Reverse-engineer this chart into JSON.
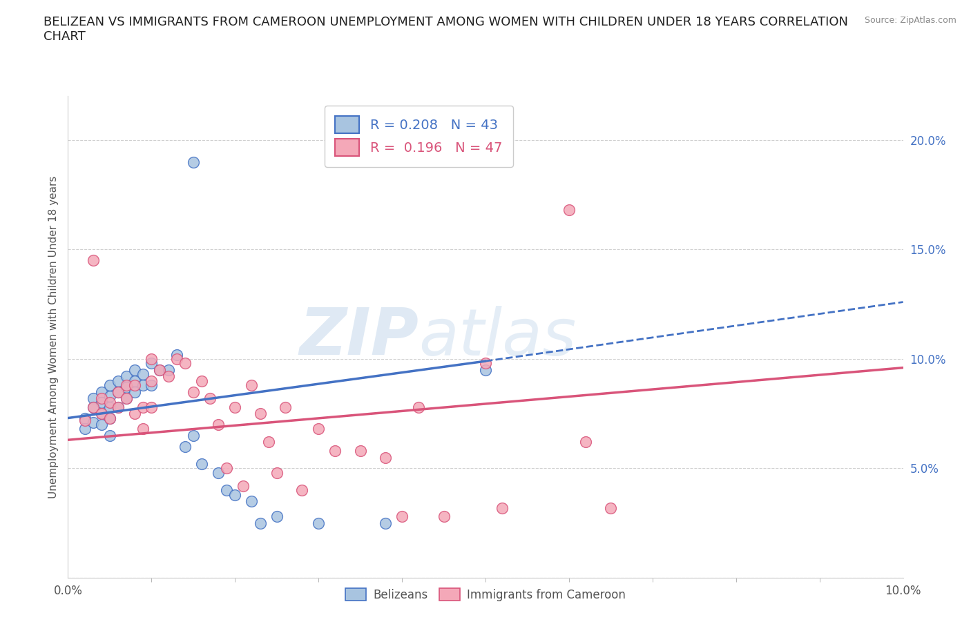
{
  "title": "BELIZEAN VS IMMIGRANTS FROM CAMEROON UNEMPLOYMENT AMONG WOMEN WITH CHILDREN UNDER 18 YEARS CORRELATION\nCHART",
  "source": "Source: ZipAtlas.com",
  "ylabel": "Unemployment Among Women with Children Under 18 years",
  "xlim": [
    0.0,
    0.1
  ],
  "ylim": [
    0.0,
    0.22
  ],
  "yticks": [
    0.0,
    0.05,
    0.1,
    0.15,
    0.2
  ],
  "ytick_labels": [
    "",
    "5.0%",
    "10.0%",
    "15.0%",
    "20.0%"
  ],
  "r_belizean": 0.208,
  "n_belizean": 43,
  "r_cameroon": 0.196,
  "n_cameroon": 47,
  "color_belizean": "#a8c4e0",
  "color_cameroon": "#f4a8b8",
  "line_color_belizean": "#4472c4",
  "line_color_cameroon": "#d9547a",
  "watermark_zip": "ZIP",
  "watermark_atlas": "atlas",
  "belizean_x": [
    0.002,
    0.002,
    0.003,
    0.003,
    0.003,
    0.004,
    0.004,
    0.004,
    0.004,
    0.005,
    0.005,
    0.005,
    0.005,
    0.005,
    0.006,
    0.006,
    0.006,
    0.007,
    0.007,
    0.007,
    0.008,
    0.008,
    0.008,
    0.009,
    0.009,
    0.01,
    0.01,
    0.011,
    0.012,
    0.013,
    0.014,
    0.015,
    0.016,
    0.018,
    0.019,
    0.02,
    0.022,
    0.023,
    0.025,
    0.03,
    0.038,
    0.05,
    0.015
  ],
  "belizean_y": [
    0.073,
    0.068,
    0.082,
    0.078,
    0.071,
    0.085,
    0.08,
    0.075,
    0.07,
    0.088,
    0.083,
    0.078,
    0.073,
    0.065,
    0.09,
    0.085,
    0.078,
    0.092,
    0.087,
    0.082,
    0.095,
    0.09,
    0.085,
    0.093,
    0.088,
    0.098,
    0.088,
    0.095,
    0.095,
    0.102,
    0.06,
    0.065,
    0.052,
    0.048,
    0.04,
    0.038,
    0.035,
    0.025,
    0.028,
    0.025,
    0.025,
    0.095,
    0.19
  ],
  "cameroon_x": [
    0.002,
    0.003,
    0.003,
    0.004,
    0.004,
    0.005,
    0.005,
    0.006,
    0.006,
    0.007,
    0.007,
    0.008,
    0.008,
    0.009,
    0.009,
    0.01,
    0.01,
    0.011,
    0.012,
    0.013,
    0.014,
    0.015,
    0.016,
    0.017,
    0.018,
    0.019,
    0.02,
    0.021,
    0.022,
    0.023,
    0.024,
    0.025,
    0.026,
    0.028,
    0.03,
    0.032,
    0.035,
    0.038,
    0.04,
    0.042,
    0.045,
    0.05,
    0.052,
    0.06,
    0.062,
    0.065,
    0.01
  ],
  "cameroon_y": [
    0.072,
    0.145,
    0.078,
    0.082,
    0.075,
    0.08,
    0.073,
    0.085,
    0.078,
    0.088,
    0.082,
    0.088,
    0.075,
    0.078,
    0.068,
    0.09,
    0.078,
    0.095,
    0.092,
    0.1,
    0.098,
    0.085,
    0.09,
    0.082,
    0.07,
    0.05,
    0.078,
    0.042,
    0.088,
    0.075,
    0.062,
    0.048,
    0.078,
    0.04,
    0.068,
    0.058,
    0.058,
    0.055,
    0.028,
    0.078,
    0.028,
    0.098,
    0.032,
    0.168,
    0.062,
    0.032,
    0.1
  ]
}
